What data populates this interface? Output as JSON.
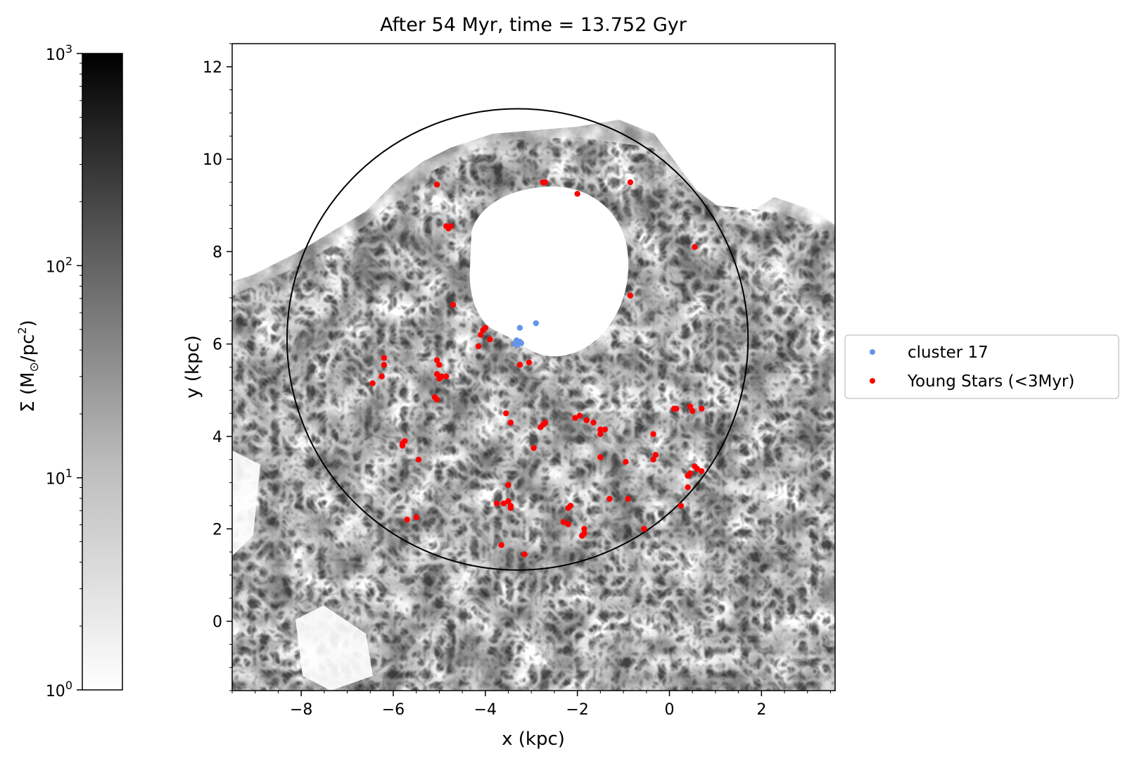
{
  "chart_data": {
    "type": "scatter",
    "title": "After 54 Myr, time = 13.752 Gyr",
    "xlabel": "x (kpc)",
    "ylabel": "y (kpc)",
    "xlim": [
      -9.5,
      3.6
    ],
    "ylim": [
      -1.5,
      12.5
    ],
    "xticks": [
      -8,
      -6,
      -4,
      -2,
      0,
      2
    ],
    "yticks": [
      0,
      2,
      4,
      6,
      8,
      10,
      12
    ],
    "xtick_labels": [
      "−8",
      "−6",
      "−4",
      "−2",
      "0",
      "2"
    ],
    "ytick_labels": [
      "0",
      "2",
      "4",
      "6",
      "8",
      "10",
      "12"
    ],
    "grid": false,
    "legend_position": "outside-right",
    "background_map": {
      "type": "heatmap",
      "quantity": "surface density",
      "colormap": "grayscale",
      "scale": "log",
      "range": [
        1,
        1000
      ]
    },
    "circle": {
      "center": [
        -3.3,
        6.1
      ],
      "radius": 5.0,
      "color": "#000000"
    },
    "colorbar": {
      "label_sym": "Σ (M",
      "label_sun": "⊙",
      "label_mid": "/pc",
      "label_sup": "2",
      "label_end": ")",
      "scale": "log",
      "range": [
        1,
        1000
      ],
      "tick_base": "10",
      "tick_exponents": [
        "0",
        "1",
        "2",
        "3"
      ]
    },
    "series": [
      {
        "name": "cluster 17",
        "color": "#6495ed",
        "points": [
          [
            -3.25,
            6.35
          ],
          [
            -2.9,
            6.45
          ],
          [
            -3.3,
            6.05
          ],
          [
            -3.25,
            6.05
          ],
          [
            -3.35,
            6.0
          ],
          [
            -3.3,
            5.98
          ],
          [
            -3.22,
            6.02
          ],
          [
            -3.32,
            6.08
          ]
        ]
      },
      {
        "name": "Young Stars (<3Myr)",
        "color": "#ff0000",
        "points": [
          [
            -5.05,
            9.45
          ],
          [
            -2.75,
            9.5
          ],
          [
            -2.7,
            9.5
          ],
          [
            -2.0,
            9.25
          ],
          [
            -0.85,
            9.5
          ],
          [
            -4.85,
            8.55
          ],
          [
            -4.75,
            8.55
          ],
          [
            -4.8,
            8.5
          ],
          [
            0.55,
            8.1
          ],
          [
            -0.85,
            7.05
          ],
          [
            -4.7,
            6.85
          ],
          [
            -4.05,
            6.3
          ],
          [
            -4.0,
            6.35
          ],
          [
            -4.1,
            6.2
          ],
          [
            -3.9,
            6.1
          ],
          [
            -4.15,
            5.95
          ],
          [
            -3.25,
            5.55
          ],
          [
            -3.05,
            5.6
          ],
          [
            -6.2,
            5.7
          ],
          [
            -6.2,
            5.55
          ],
          [
            -5.05,
            5.65
          ],
          [
            -5.0,
            5.55
          ],
          [
            -5.05,
            5.35
          ],
          [
            -4.95,
            5.3
          ],
          [
            -4.85,
            5.3
          ],
          [
            -5.0,
            5.25
          ],
          [
            -6.25,
            5.3
          ],
          [
            -6.45,
            5.15
          ],
          [
            -5.1,
            4.85
          ],
          [
            -5.05,
            4.8
          ],
          [
            -3.55,
            4.5
          ],
          [
            -3.45,
            4.3
          ],
          [
            -2.75,
            4.25
          ],
          [
            -2.7,
            4.3
          ],
          [
            -2.8,
            4.2
          ],
          [
            -2.05,
            4.4
          ],
          [
            -1.95,
            4.45
          ],
          [
            -1.8,
            4.35
          ],
          [
            -1.65,
            4.3
          ],
          [
            -1.5,
            4.15
          ],
          [
            -1.4,
            4.15
          ],
          [
            -1.5,
            4.05
          ],
          [
            -0.35,
            4.05
          ],
          [
            0.1,
            4.6
          ],
          [
            0.15,
            4.6
          ],
          [
            0.45,
            4.65
          ],
          [
            0.5,
            4.55
          ],
          [
            0.7,
            4.6
          ],
          [
            -5.8,
            3.85
          ],
          [
            -5.75,
            3.9
          ],
          [
            -5.8,
            3.8
          ],
          [
            -5.45,
            3.5
          ],
          [
            -2.95,
            3.75
          ],
          [
            -1.5,
            3.55
          ],
          [
            -0.95,
            3.45
          ],
          [
            -0.35,
            3.5
          ],
          [
            -0.3,
            3.6
          ],
          [
            0.55,
            3.35
          ],
          [
            0.6,
            3.3
          ],
          [
            0.7,
            3.25
          ],
          [
            0.4,
            3.15
          ],
          [
            0.45,
            3.2
          ],
          [
            0.4,
            2.9
          ],
          [
            -3.5,
            2.95
          ],
          [
            -3.5,
            2.6
          ],
          [
            -3.45,
            2.5
          ],
          [
            -3.6,
            2.55
          ],
          [
            -3.75,
            2.55
          ],
          [
            -3.45,
            2.45
          ],
          [
            -2.2,
            2.45
          ],
          [
            -2.15,
            2.5
          ],
          [
            -1.3,
            2.65
          ],
          [
            -0.9,
            2.65
          ],
          [
            0.25,
            2.5
          ],
          [
            -5.7,
            2.2
          ],
          [
            -5.5,
            2.25
          ],
          [
            -2.3,
            2.15
          ],
          [
            -2.2,
            2.1
          ],
          [
            -1.85,
            2.0
          ],
          [
            -1.85,
            1.9
          ],
          [
            -1.9,
            1.85
          ],
          [
            -0.55,
            2.0
          ],
          [
            -3.65,
            1.65
          ],
          [
            -3.15,
            1.45
          ]
        ]
      }
    ]
  }
}
